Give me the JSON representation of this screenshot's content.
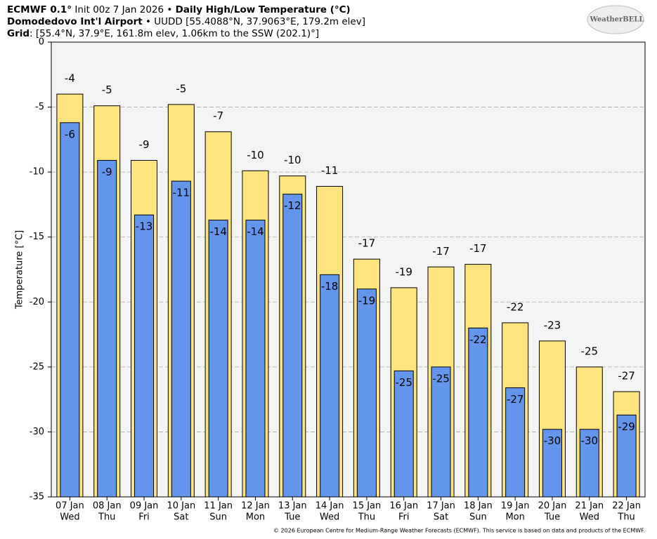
{
  "chart_data": {
    "type": "bar",
    "title": [
      "ECMWF 0.1°",
      " Init 00z 7 Jan 2026 • ",
      "Daily High/Low Temperature (°C)"
    ],
    "subtitle": [
      "Domodedovo Int'l Airport",
      " • UUDD [55.4088°N, 37.9063°E, 179.2m elev]"
    ],
    "grid_info": [
      "Grid",
      ": [55.4°N, 37.9°E, 161.8m elev, 1.06km to the SSW (202.1)°]"
    ],
    "logo": "WeatherBELL",
    "footer": "© 2026 European Centre for Medium-Range Weather Forecasts (ECMWF). This service is based on data and products of the ECMWF.",
    "ylabel": "Temperature [°C]",
    "categories": [
      "07 Jan",
      "08 Jan",
      "09 Jan",
      "10 Jan",
      "11 Jan",
      "12 Jan",
      "13 Jan",
      "14 Jan",
      "15 Jan",
      "16 Jan",
      "17 Jan",
      "18 Jan",
      "19 Jan",
      "20 Jan",
      "21 Jan",
      "22 Jan"
    ],
    "category_days": [
      "Wed",
      "Thu",
      "Fri",
      "Sat",
      "Sun",
      "Mon",
      "Tue",
      "Wed",
      "Thu",
      "Fri",
      "Sat",
      "Sun",
      "Mon",
      "Tue",
      "Wed",
      "Thu"
    ],
    "series": [
      {
        "color": "#fde47f",
        "values": [
          -4.0,
          -4.9,
          -9.1,
          -4.8,
          -6.9,
          -9.9,
          -10.3,
          -11.1,
          -16.7,
          -18.9,
          -17.3,
          -17.1,
          -21.6,
          -23.0,
          -25.0,
          -26.9
        ],
        "value_labels": [
          "-4",
          "-5",
          "-9",
          "-5",
          "-7",
          "-10",
          "-10",
          "-11",
          "-17",
          "-19",
          "-17",
          "-17",
          "-22",
          "-23",
          "-25",
          "-27"
        ]
      },
      {
        "color": "#6495ed",
        "values": [
          -6.2,
          -9.1,
          -13.3,
          -10.7,
          -13.7,
          -13.7,
          -11.7,
          -17.9,
          -19.0,
          -25.3,
          -25.0,
          -22.0,
          -26.6,
          -29.8,
          -29.8,
          -28.7
        ],
        "value_labels": [
          "-6",
          "-9",
          "-13",
          "-11",
          "-14",
          "-14",
          "-12",
          "-18",
          "-19",
          "-25",
          "-25",
          "-22",
          "-27",
          "-30",
          "-30",
          "-29"
        ]
      }
    ],
    "ylim": [
      -35,
      0
    ],
    "yticks": [
      0,
      -5,
      -10,
      -15,
      -20,
      -25,
      -30,
      -35
    ],
    "grid": true
  }
}
